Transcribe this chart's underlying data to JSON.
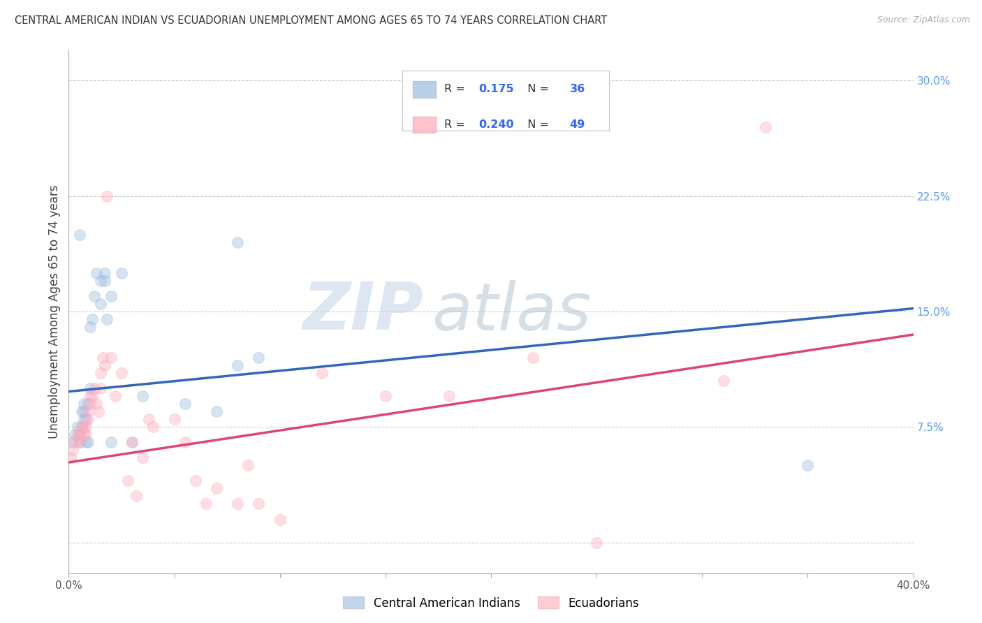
{
  "title": "CENTRAL AMERICAN INDIAN VS ECUADORIAN UNEMPLOYMENT AMONG AGES 65 TO 74 YEARS CORRELATION CHART",
  "source": "Source: ZipAtlas.com",
  "ylabel": "Unemployment Among Ages 65 to 74 years",
  "xlim": [
    0.0,
    0.4
  ],
  "ylim": [
    -0.02,
    0.32
  ],
  "xticks": [
    0.0,
    0.05,
    0.1,
    0.15,
    0.2,
    0.25,
    0.3,
    0.35,
    0.4
  ],
  "xticklabels": [
    "0.0%",
    "",
    "",
    "",
    "",
    "",
    "",
    "",
    "40.0%"
  ],
  "yticks_right": [
    0.0,
    0.075,
    0.15,
    0.225,
    0.3
  ],
  "ytick_right_labels": [
    "",
    "7.5%",
    "15.0%",
    "22.5%",
    "30.0%"
  ],
  "grid_color": "#cccccc",
  "background_color": "#ffffff",
  "watermark_zip": "ZIP",
  "watermark_atlas": "atlas",
  "legend_R1": "0.175",
  "legend_N1": "36",
  "legend_R2": "0.240",
  "legend_N2": "49",
  "series1_color": "#99bbdd",
  "series2_color": "#ffaabb",
  "series1_label": "Central American Indians",
  "series2_label": "Ecuadorians",
  "series1_x": [
    0.002,
    0.003,
    0.004,
    0.005,
    0.005,
    0.006,
    0.006,
    0.007,
    0.007,
    0.007,
    0.008,
    0.008,
    0.009,
    0.009,
    0.01,
    0.01,
    0.011,
    0.012,
    0.013,
    0.015,
    0.015,
    0.017,
    0.017,
    0.018,
    0.02,
    0.02,
    0.025,
    0.03,
    0.035,
    0.055,
    0.07,
    0.08,
    0.09,
    0.35,
    0.08,
    0.005
  ],
  "series1_y": [
    0.065,
    0.07,
    0.075,
    0.065,
    0.07,
    0.075,
    0.085,
    0.08,
    0.085,
    0.09,
    0.08,
    0.065,
    0.065,
    0.09,
    0.1,
    0.14,
    0.145,
    0.16,
    0.175,
    0.17,
    0.155,
    0.175,
    0.17,
    0.145,
    0.16,
    0.065,
    0.175,
    0.065,
    0.095,
    0.09,
    0.085,
    0.115,
    0.12,
    0.05,
    0.195,
    0.2
  ],
  "series2_x": [
    0.001,
    0.002,
    0.003,
    0.004,
    0.005,
    0.005,
    0.006,
    0.007,
    0.007,
    0.008,
    0.008,
    0.009,
    0.009,
    0.01,
    0.01,
    0.011,
    0.012,
    0.013,
    0.014,
    0.015,
    0.015,
    0.016,
    0.017,
    0.018,
    0.02,
    0.022,
    0.025,
    0.028,
    0.03,
    0.032,
    0.035,
    0.038,
    0.04,
    0.05,
    0.055,
    0.06,
    0.065,
    0.07,
    0.08,
    0.085,
    0.09,
    0.1,
    0.12,
    0.15,
    0.18,
    0.22,
    0.25,
    0.31,
    0.33
  ],
  "series2_y": [
    0.055,
    0.06,
    0.065,
    0.07,
    0.065,
    0.07,
    0.075,
    0.07,
    0.075,
    0.07,
    0.075,
    0.08,
    0.085,
    0.09,
    0.095,
    0.095,
    0.1,
    0.09,
    0.085,
    0.1,
    0.11,
    0.12,
    0.115,
    0.225,
    0.12,
    0.095,
    0.11,
    0.04,
    0.065,
    0.03,
    0.055,
    0.08,
    0.075,
    0.08,
    0.065,
    0.04,
    0.025,
    0.035,
    0.025,
    0.05,
    0.025,
    0.015,
    0.11,
    0.095,
    0.095,
    0.12,
    0.0,
    0.105,
    0.27
  ],
  "trend1_x": [
    0.0,
    0.4
  ],
  "trend1_y": [
    0.098,
    0.152
  ],
  "trend2_x": [
    0.0,
    0.4
  ],
  "trend2_y": [
    0.052,
    0.135
  ],
  "trend1_color": "#3366bb",
  "trend2_color": "#dd4477",
  "marker_size": 130,
  "marker_alpha": 0.4,
  "line_width": 2.5
}
